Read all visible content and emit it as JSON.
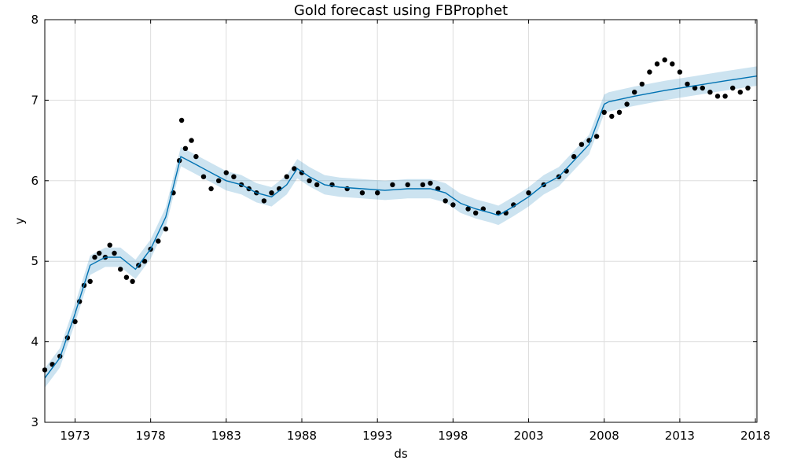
{
  "chart_data": {
    "type": "line",
    "title": "Gold forecast using FBProphet",
    "xlabel": "ds",
    "ylabel": "y",
    "xlim": [
      1971.0,
      2018.1
    ],
    "ylim": [
      3,
      8
    ],
    "x_ticks": [
      1973,
      1978,
      1983,
      1988,
      1993,
      1998,
      2003,
      2008,
      2013,
      2018
    ],
    "y_ticks": [
      3,
      4,
      5,
      6,
      7,
      8
    ],
    "grid": true,
    "colors": {
      "observed": "#000000",
      "forecast": "#0072B2",
      "interval": "#0072B2"
    },
    "series": [
      {
        "kind": "observed",
        "x": [
          1971.0,
          1971.5,
          1972.0,
          1972.5,
          1973.0,
          1973.3,
          1973.6,
          1974.0,
          1974.3,
          1974.6,
          1975.0,
          1975.3,
          1975.6,
          1976.0,
          1976.4,
          1976.8,
          1977.2,
          1977.6,
          1978.0,
          1978.5,
          1979.0,
          1979.5,
          1979.9,
          1980.05,
          1980.3,
          1980.7,
          1981.0,
          1981.5,
          1982.0,
          1982.5,
          1983.0,
          1983.5,
          1984.0,
          1984.5,
          1985.0,
          1985.5,
          1986.0,
          1986.5,
          1987.0,
          1987.5,
          1988.0,
          1988.5,
          1989.0,
          1990.0,
          1991.0,
          1992.0,
          1993.0,
          1994.0,
          1995.0,
          1996.0,
          1996.5,
          1997.0,
          1997.5,
          1998.0,
          1999.0,
          1999.5,
          2000.0,
          2001.0,
          2001.5,
          2002.0,
          2003.0,
          2004.0,
          2005.0,
          2005.5,
          2006.0,
          2006.5,
          2007.0,
          2007.5,
          2008.0,
          2008.5,
          2009.0,
          2009.5,
          2010.0,
          2010.5,
          2011.0,
          2011.5,
          2012.0,
          2012.5,
          2013.0,
          2013.5,
          2014.0,
          2014.5,
          2015.0,
          2015.5,
          2016.0,
          2016.5,
          2017.0,
          2017.5
        ],
        "y": [
          3.65,
          3.72,
          3.82,
          4.05,
          4.25,
          4.5,
          4.7,
          4.75,
          5.05,
          5.1,
          5.05,
          5.2,
          5.1,
          4.9,
          4.8,
          4.75,
          4.95,
          5.0,
          5.15,
          5.25,
          5.4,
          5.85,
          6.25,
          6.75,
          6.4,
          6.5,
          6.3,
          6.05,
          5.9,
          6.0,
          6.1,
          6.05,
          5.95,
          5.9,
          5.85,
          5.75,
          5.85,
          5.9,
          6.05,
          6.15,
          6.1,
          6.0,
          5.95,
          5.95,
          5.9,
          5.85,
          5.85,
          5.95,
          5.95,
          5.95,
          5.97,
          5.9,
          5.75,
          5.7,
          5.65,
          5.6,
          5.65,
          5.6,
          5.6,
          5.7,
          5.85,
          5.95,
          6.05,
          6.12,
          6.3,
          6.45,
          6.5,
          6.55,
          6.85,
          6.8,
          6.85,
          6.95,
          7.1,
          7.2,
          7.35,
          7.45,
          7.5,
          7.45,
          7.35,
          7.2,
          7.15,
          7.15,
          7.1,
          7.05,
          7.05,
          7.15,
          7.1,
          7.15
        ]
      },
      {
        "kind": "forecast",
        "x": [
          1971.0,
          1972.0,
          1973.0,
          1974.0,
          1975.0,
          1976.0,
          1977.0,
          1978.0,
          1979.0,
          1980.0,
          1981.0,
          1982.0,
          1983.0,
          1984.0,
          1985.0,
          1986.0,
          1987.0,
          1987.7,
          1988.5,
          1989.5,
          1990.5,
          1992.0,
          1993.5,
          1995.0,
          1996.5,
          1997.5,
          1998.5,
          1999.5,
          2000.5,
          2001.0,
          2002.0,
          2003.0,
          2004.0,
          2005.0,
          2006.0,
          2007.0,
          2008.0,
          2008.3,
          2010.0,
          2012.0,
          2014.0,
          2016.0,
          2018.1
        ],
        "y": [
          3.55,
          3.8,
          4.35,
          4.95,
          5.05,
          5.05,
          4.9,
          5.15,
          5.55,
          6.3,
          6.2,
          6.1,
          6.0,
          5.95,
          5.85,
          5.8,
          5.95,
          6.15,
          6.05,
          5.95,
          5.92,
          5.9,
          5.88,
          5.9,
          5.9,
          5.85,
          5.72,
          5.65,
          5.6,
          5.57,
          5.68,
          5.8,
          5.95,
          6.05,
          6.25,
          6.45,
          6.95,
          6.98,
          7.05,
          7.12,
          7.18,
          7.24,
          7.3
        ]
      }
    ],
    "interval_halfwidth": 0.12
  }
}
